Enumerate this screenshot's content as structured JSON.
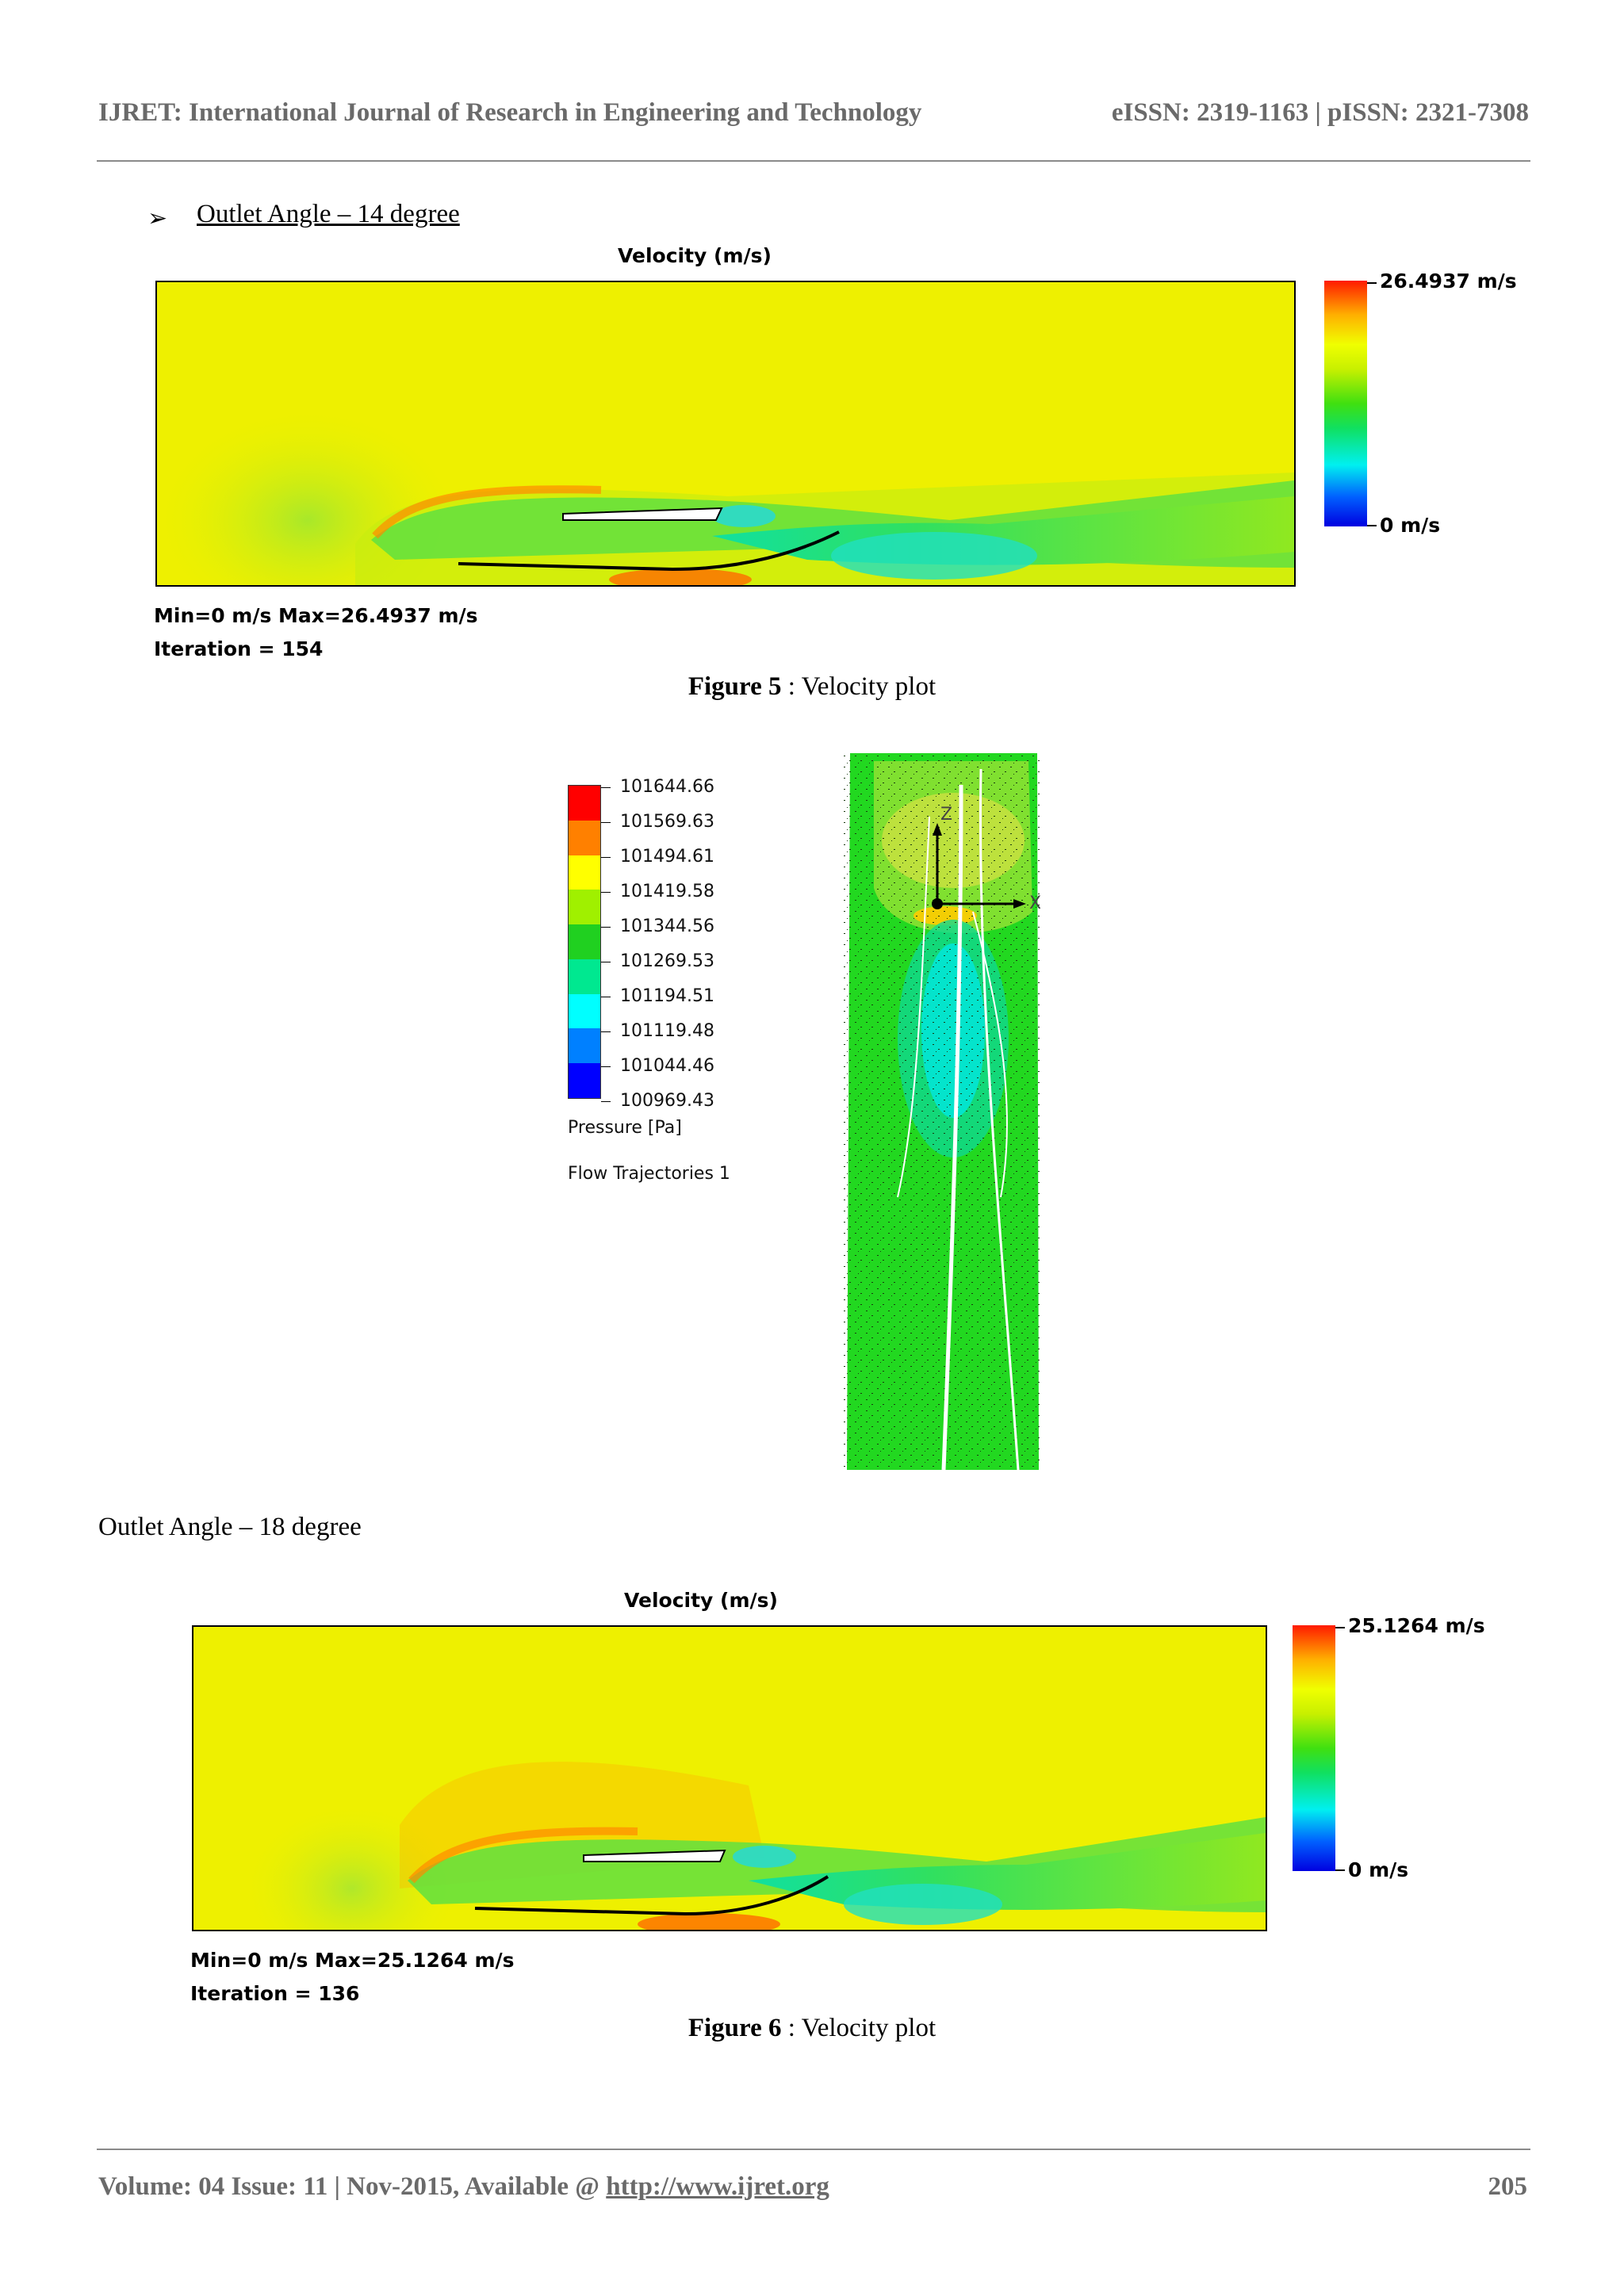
{
  "header": {
    "journal": "IJRET: International Journal of Research in Engineering and Technology",
    "issn": "eISSN: 2319-1163 | pISSN: 2321-7308"
  },
  "section1": {
    "bullet": "➢",
    "title": "Outlet Angle – 14 degree"
  },
  "figure5": {
    "plot_title": "Velocity (m/s)",
    "legend_max": "26.4937 m/s",
    "legend_min": "0 m/s",
    "stats": "Min=0 m/s   Max=26.4937 m/s",
    "iteration": "Iteration = 154",
    "caption_label": "Figure 5",
    "caption_text": " : Velocity plot"
  },
  "pressure_plot": {
    "levels": [
      "101644.66",
      "101569.63",
      "101494.61",
      "101419.58",
      "101344.56",
      "101269.53",
      "101194.51",
      "101119.48",
      "101044.46",
      "100969.43"
    ],
    "level_colors": [
      "#ff0000",
      "#ff8000",
      "#ffff00",
      "#a0f000",
      "#20d020",
      "#00e890",
      "#00ffff",
      "#0080ff",
      "#0000ff"
    ],
    "unit_label": "Pressure [Pa]",
    "trajectory_label": "Flow Trajectories 1",
    "axis_z": "Z",
    "axis_x": "X"
  },
  "section2": {
    "title": "Outlet Angle – 18 degree"
  },
  "figure6": {
    "plot_title": "Velocity (m/s)",
    "legend_max": "25.1264 m/s",
    "legend_min": "0 m/s",
    "stats": "Min=0 m/s   Max=25.1264 m/s",
    "iteration": "Iteration = 136",
    "caption_label": "Figure 6",
    "caption_text": " : Velocity plot"
  },
  "footer": {
    "volume": "Volume: 04 Issue: 11 | Nov-2015, Available @ ",
    "link": "http://www.ijret.org",
    "page": "205"
  }
}
